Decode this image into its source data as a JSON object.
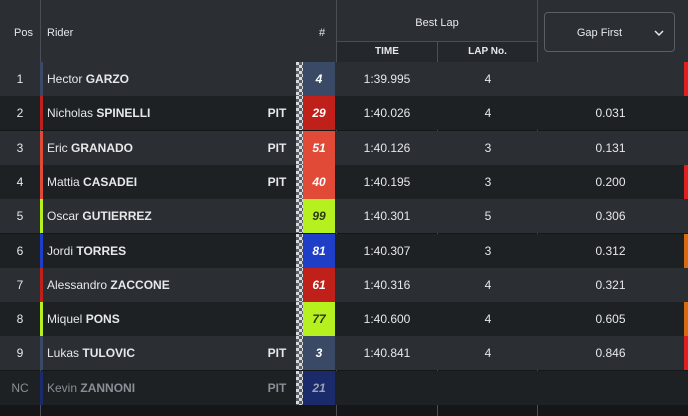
{
  "header": {
    "pos": "Pos",
    "rider": "Rider",
    "number": "#",
    "best_lap": "Best Lap",
    "time": "TIME",
    "lap_no": "LAP No.",
    "gap_select": "Gap First"
  },
  "rows": [
    {
      "pos": "1",
      "first": "Hector",
      "last": "GARZO",
      "pit": "",
      "number": "4",
      "time": "1:39.995",
      "lap": "4",
      "gap": "",
      "num_bg": "#3a4a66",
      "num_color": "#ffffff",
      "accent": "#3a4a66",
      "edge": "#e02020"
    },
    {
      "pos": "2",
      "first": "Nicholas",
      "last": "SPINELLI",
      "pit": "PIT",
      "number": "29",
      "time": "1:40.026",
      "lap": "4",
      "gap": "0.031",
      "num_bg": "#c0201a",
      "num_color": "#ffffff",
      "accent": "#c0201a",
      "edge": ""
    },
    {
      "pos": "3",
      "first": "Eric",
      "last": "GRANADO",
      "pit": "PIT",
      "number": "51",
      "time": "1:40.126",
      "lap": "3",
      "gap": "0.131",
      "num_bg": "#e04a36",
      "num_color": "#ffffff",
      "accent": "#e04a36",
      "edge": ""
    },
    {
      "pos": "4",
      "first": "Mattia",
      "last": "CASADEI",
      "pit": "PIT",
      "number": "40",
      "time": "1:40.195",
      "lap": "3",
      "gap": "0.200",
      "num_bg": "#e04a36",
      "num_color": "#ffffff",
      "accent": "#e04a36",
      "edge": "#e02020"
    },
    {
      "pos": "5",
      "first": "Oscar",
      "last": "GUTIERREZ",
      "pit": "",
      "number": "99",
      "time": "1:40.301",
      "lap": "5",
      "gap": "0.306",
      "num_bg": "#b6f01e",
      "num_color": "#2a3a10",
      "accent": "#b6f01e",
      "edge": ""
    },
    {
      "pos": "6",
      "first": "Jordi",
      "last": "TORRES",
      "pit": "",
      "number": "81",
      "time": "1:40.307",
      "lap": "3",
      "gap": "0.312",
      "num_bg": "#1e3ec8",
      "num_color": "#ffffff",
      "accent": "#1e3ec8",
      "edge": "#d86a10"
    },
    {
      "pos": "7",
      "first": "Alessandro",
      "last": "ZACCONE",
      "pit": "",
      "number": "61",
      "time": "1:40.316",
      "lap": "4",
      "gap": "0.321",
      "num_bg": "#c0201a",
      "num_color": "#ffffff",
      "accent": "#c0201a",
      "edge": ""
    },
    {
      "pos": "8",
      "first": "Miquel",
      "last": "PONS",
      "pit": "",
      "number": "77",
      "time": "1:40.600",
      "lap": "4",
      "gap": "0.605",
      "num_bg": "#b6f01e",
      "num_color": "#2a3a10",
      "accent": "#b6f01e",
      "edge": "#d86a10"
    },
    {
      "pos": "9",
      "first": "Lukas",
      "last": "TULOVIC",
      "pit": "PIT",
      "number": "3",
      "time": "1:40.841",
      "lap": "4",
      "gap": "0.846",
      "num_bg": "#3a4a66",
      "num_color": "#ffffff",
      "accent": "#3a4a66",
      "edge": "#e02020"
    },
    {
      "pos": "NC",
      "first": "Kevin",
      "last": "ZANNONI",
      "pit": "PIT",
      "number": "21",
      "time": "",
      "lap": "",
      "gap": "",
      "num_bg": "#1a2a6a",
      "num_color": "#9aa3b8",
      "accent": "#1a2a6a",
      "edge": ""
    }
  ]
}
